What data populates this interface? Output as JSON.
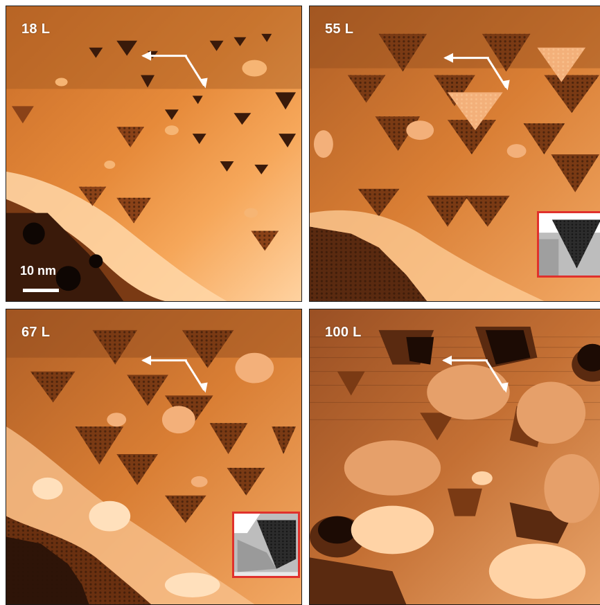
{
  "panels": [
    {
      "label": "18 L"
    },
    {
      "label": "55 L"
    },
    {
      "label": "67 L"
    },
    {
      "label": "100 L"
    }
  ],
  "scale_bar": {
    "label": "10 nm"
  },
  "colors": {
    "terrace": "#c8702e",
    "bright": "#f0a060",
    "dark": "#3a1a0a",
    "inset_border": "#e0312c"
  }
}
